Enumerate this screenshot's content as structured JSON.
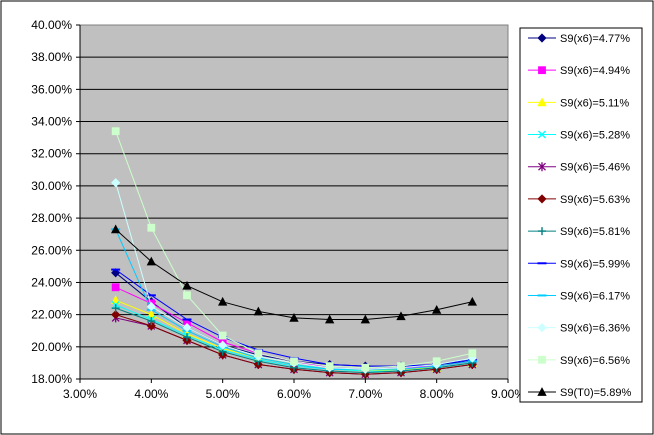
{
  "chart_data": {
    "type": "line",
    "title": "",
    "xlabel": "",
    "ylabel": "",
    "x": [
      3.5,
      4.0,
      4.5,
      5.0,
      5.5,
      6.0,
      6.5,
      7.0,
      7.5,
      8.0,
      8.5
    ],
    "xlim": [
      3.0,
      9.0
    ],
    "ylim": [
      18.0,
      40.0
    ],
    "x_ticks": [
      "3.00%",
      "4.00%",
      "5.00%",
      "6.00%",
      "7.00%",
      "8.00%",
      "9.00%"
    ],
    "y_ticks": [
      "18.00%",
      "20.00%",
      "22.00%",
      "24.00%",
      "26.00%",
      "28.00%",
      "30.00%",
      "32.00%",
      "34.00%",
      "36.00%",
      "38.00%",
      "40.00%"
    ],
    "grid": "horizontal",
    "plot_background": "#c0c0c0",
    "legend_position": "right",
    "series": [
      {
        "name": "S9(x6)=4.77%",
        "color": "#000080",
        "marker": "diamond",
        "values": [
          24.6,
          22.8,
          21.2,
          20.1,
          19.5,
          19.1,
          18.9,
          18.8,
          18.8,
          18.9,
          19.1
        ]
      },
      {
        "name": "S9(x6)=4.94%",
        "color": "#ff00ff",
        "marker": "square",
        "values": [
          23.7,
          22.7,
          21.5,
          20.3,
          19.6,
          19.1,
          18.7,
          18.6,
          18.7,
          18.8,
          19.1
        ]
      },
      {
        "name": "S9(x6)=5.11%",
        "color": "#ffff00",
        "marker": "triangle",
        "values": [
          22.9,
          22.0,
          20.8,
          19.9,
          19.3,
          18.9,
          18.6,
          18.5,
          18.6,
          18.7,
          19.0
        ]
      },
      {
        "name": "S9(x6)=5.28%",
        "color": "#00ffff",
        "marker": "x",
        "values": [
          22.6,
          21.7,
          20.7,
          19.8,
          19.2,
          18.8,
          18.6,
          18.5,
          18.5,
          18.7,
          19.0
        ]
      },
      {
        "name": "S9(x6)=5.46%",
        "color": "#800080",
        "marker": "star",
        "values": [
          21.8,
          21.3,
          20.4,
          19.5,
          18.9,
          18.6,
          18.4,
          18.3,
          18.4,
          18.6,
          18.9
        ]
      },
      {
        "name": "S9(x6)=5.63%",
        "color": "#800000",
        "marker": "diamond",
        "values": [
          22.0,
          21.3,
          20.4,
          19.5,
          18.9,
          18.6,
          18.4,
          18.3,
          18.4,
          18.6,
          18.9
        ]
      },
      {
        "name": "S9(x6)=5.81%",
        "color": "#008080",
        "marker": "plus",
        "values": [
          22.4,
          21.6,
          20.6,
          19.7,
          19.1,
          18.7,
          18.5,
          18.4,
          18.5,
          18.7,
          19.0
        ]
      },
      {
        "name": "S9(x6)=5.99%",
        "color": "#0000ff",
        "marker": "dash",
        "values": [
          24.8,
          23.2,
          21.7,
          20.6,
          19.8,
          19.3,
          18.9,
          18.8,
          18.8,
          18.9,
          19.2
        ]
      },
      {
        "name": "S9(x6)=6.17%",
        "color": "#00ccff",
        "marker": "dash",
        "values": [
          27.3,
          22.3,
          21.0,
          20.0,
          19.3,
          18.9,
          18.6,
          18.6,
          18.6,
          18.8,
          19.1
        ]
      },
      {
        "name": "S9(x6)=6.36%",
        "color": "#ccffff",
        "marker": "diamond",
        "values": [
          30.2,
          22.5,
          21.2,
          20.1,
          19.4,
          19.0,
          18.7,
          18.6,
          18.7,
          18.9,
          19.3
        ]
      },
      {
        "name": "S9(x6)=6.56%",
        "color": "#ccffcc",
        "marker": "square",
        "values": [
          33.4,
          27.4,
          23.2,
          20.7,
          19.6,
          19.1,
          18.8,
          18.7,
          18.8,
          19.1,
          19.6
        ]
      },
      {
        "name": "S9(T0)=5.89%",
        "color": "#000000",
        "marker": "triangle",
        "values": [
          27.3,
          25.3,
          23.8,
          22.8,
          22.2,
          21.8,
          21.7,
          21.7,
          21.9,
          22.3,
          22.8
        ]
      }
    ]
  }
}
